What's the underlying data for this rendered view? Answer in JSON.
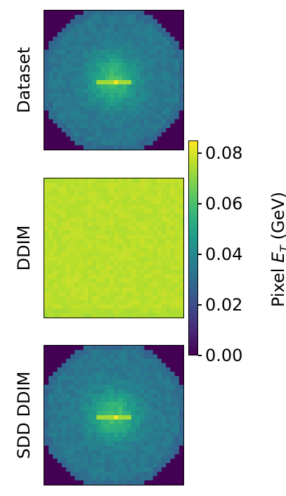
{
  "chart_data": {
    "type": "heatmap",
    "rows": [
      {
        "label": "Dataset",
        "pattern": "radial"
      },
      {
        "label": "DDIM",
        "pattern": "uniform"
      },
      {
        "label": "SDD DDIM",
        "pattern": "radial"
      }
    ],
    "colorbar": {
      "label_prefix": "Pixel ",
      "label_symbol": "E",
      "label_subscript": "T",
      "label_suffix": " (GeV)",
      "colormap": "viridis",
      "range": [
        0.0,
        0.085
      ],
      "ticks": [
        "0.00",
        "0.02",
        "0.04",
        "0.06",
        "0.08"
      ],
      "tick_values": [
        0.0,
        0.02,
        0.04,
        0.06,
        0.08
      ]
    }
  }
}
